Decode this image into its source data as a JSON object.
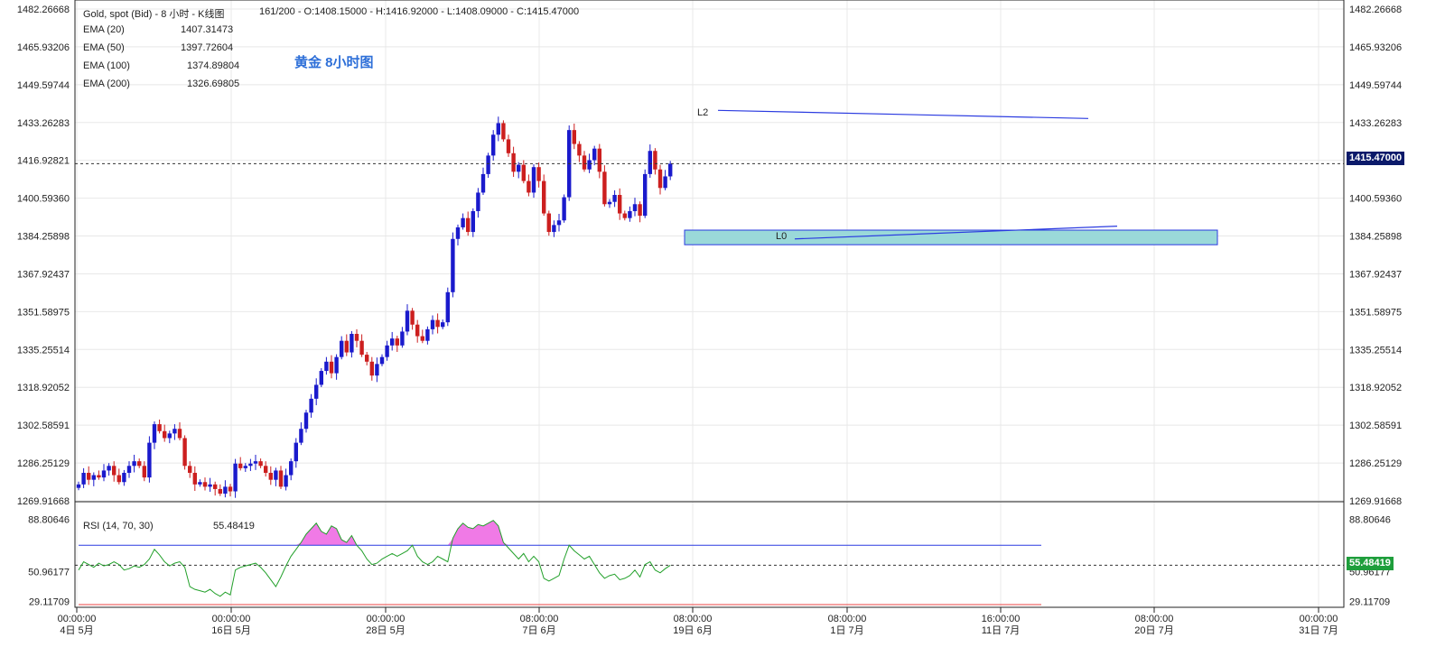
{
  "header": {
    "symbol": "Gold, spot (Bid) - 8 小时 - K线图",
    "ohlc": "161/200 - O:1408.15000 - H:1416.92000 - L:1408.09000 - C:1415.47000"
  },
  "ema": [
    {
      "label": "EMA (20)",
      "value": "1407.31473"
    },
    {
      "label": "EMA (50)",
      "value": "1397.72604"
    },
    {
      "label": "EMA (100)",
      "value": "1374.89804"
    },
    {
      "label": "EMA (200)",
      "value": "1326.69805"
    }
  ],
  "annotation": "黄金 8小时图",
  "line_labels": {
    "upper": "L2",
    "lower": "L0"
  },
  "last_price_tag": "1415.47000",
  "rsi": {
    "label": "RSI (14, 70, 30)",
    "value": "55.48419",
    "tag": "55.48419"
  },
  "colors": {
    "up": "#1a1acc",
    "down": "#cc1f1f",
    "zone": "#9ad9d9",
    "trend": "#2b3be0",
    "rsi_line": "#22a02a",
    "rsi_fill": "#f07ae6"
  },
  "chart_data": [
    {
      "type": "candlestick",
      "title": "Gold, spot (Bid) - 8 小时 - K线图",
      "y_ticks": [
        "1482.26668",
        "1465.93206",
        "1449.59744",
        "1433.26283",
        "1416.92821",
        "1400.59360",
        "1384.25898",
        "1367.92437",
        "1351.58975",
        "1335.25514",
        "1318.92052",
        "1302.58591",
        "1286.25129",
        "1269.91668"
      ],
      "ylim": [
        1269.91668,
        1482.26668
      ],
      "x_ticks": [
        {
          "time": "00:00:00",
          "date": "4日 5月"
        },
        {
          "time": "00:00:00",
          "date": "16日 5月"
        },
        {
          "time": "00:00:00",
          "date": "28日 5月"
        },
        {
          "time": "08:00:00",
          "date": "7日 6月"
        },
        {
          "time": "08:00:00",
          "date": "19日 6月"
        },
        {
          "time": "08:00:00",
          "date": "1日 7月"
        },
        {
          "time": "16:00:00",
          "date": "11日 7月"
        },
        {
          "time": "08:00:00",
          "date": "20日 7月"
        },
        {
          "time": "00:00:00",
          "date": "31日 7月"
        }
      ],
      "closes": [
        1277,
        1282,
        1279,
        1281,
        1280,
        1283,
        1285,
        1281,
        1278,
        1282,
        1285,
        1287,
        1285,
        1280,
        1295,
        1303,
        1300,
        1297,
        1299,
        1301,
        1297,
        1285,
        1282,
        1277,
        1278,
        1276,
        1277,
        1275,
        1273,
        1276,
        1274,
        1286,
        1284,
        1285,
        1286,
        1287,
        1285,
        1282,
        1279,
        1283,
        1276,
        1281,
        1287,
        1295,
        1301,
        1308,
        1314,
        1320,
        1326,
        1330,
        1325,
        1332,
        1339,
        1334,
        1342,
        1339,
        1333,
        1330,
        1324,
        1329,
        1332,
        1337,
        1340,
        1337,
        1343,
        1352,
        1346,
        1341,
        1339,
        1344,
        1348,
        1345,
        1347,
        1360,
        1383,
        1388,
        1392,
        1386,
        1395,
        1403,
        1411,
        1419,
        1428,
        1433,
        1426,
        1420,
        1412,
        1415,
        1408,
        1403,
        1414,
        1408,
        1394,
        1386,
        1389,
        1391,
        1401,
        1430,
        1424,
        1419,
        1413,
        1417,
        1422,
        1412,
        1398,
        1399,
        1402,
        1394,
        1392,
        1395,
        1398,
        1393,
        1411,
        1421,
        1413,
        1405,
        1410,
        1415.47
      ],
      "ema20": "1407.31473",
      "ema50": "1397.72604",
      "ema100": "1374.89804",
      "ema200": "1326.69805",
      "support_zone": [
        1380.5,
        1386.8
      ],
      "resistance_line": [
        1438.5,
        1435
      ],
      "support_line": [
        1383,
        1388.5
      ]
    },
    {
      "type": "line",
      "title": "RSI (14, 70, 30)",
      "y_ticks": [
        "88.80646",
        "50.96177",
        "29.11709"
      ],
      "ylim": [
        25,
        95
      ],
      "overbought": 70,
      "reference": 55.48419,
      "values": [
        52,
        58,
        56,
        54,
        57,
        55,
        56,
        58,
        56,
        52,
        53,
        55,
        54,
        56,
        60,
        67,
        63,
        58,
        55,
        57,
        58,
        54,
        40,
        38,
        37,
        36,
        38,
        35,
        33,
        36,
        34,
        52,
        54,
        55,
        56,
        57,
        54,
        50,
        45,
        40,
        47,
        55,
        62,
        67,
        72,
        78,
        82,
        86,
        80,
        78,
        84,
        82,
        74,
        72,
        77,
        70,
        66,
        60,
        56,
        57,
        60,
        62,
        64,
        62,
        64,
        66,
        70,
        62,
        58,
        56,
        58,
        62,
        60,
        58,
        75,
        82,
        86,
        83,
        82,
        85,
        84,
        86,
        88,
        84,
        72,
        68,
        64,
        60,
        64,
        58,
        62,
        58,
        46,
        44,
        46,
        48,
        60,
        70,
        66,
        63,
        60,
        62,
        56,
        50,
        46,
        48,
        49,
        45,
        46,
        48,
        52,
        47,
        56,
        58,
        52,
        50,
        53,
        55.48
      ]
    }
  ]
}
